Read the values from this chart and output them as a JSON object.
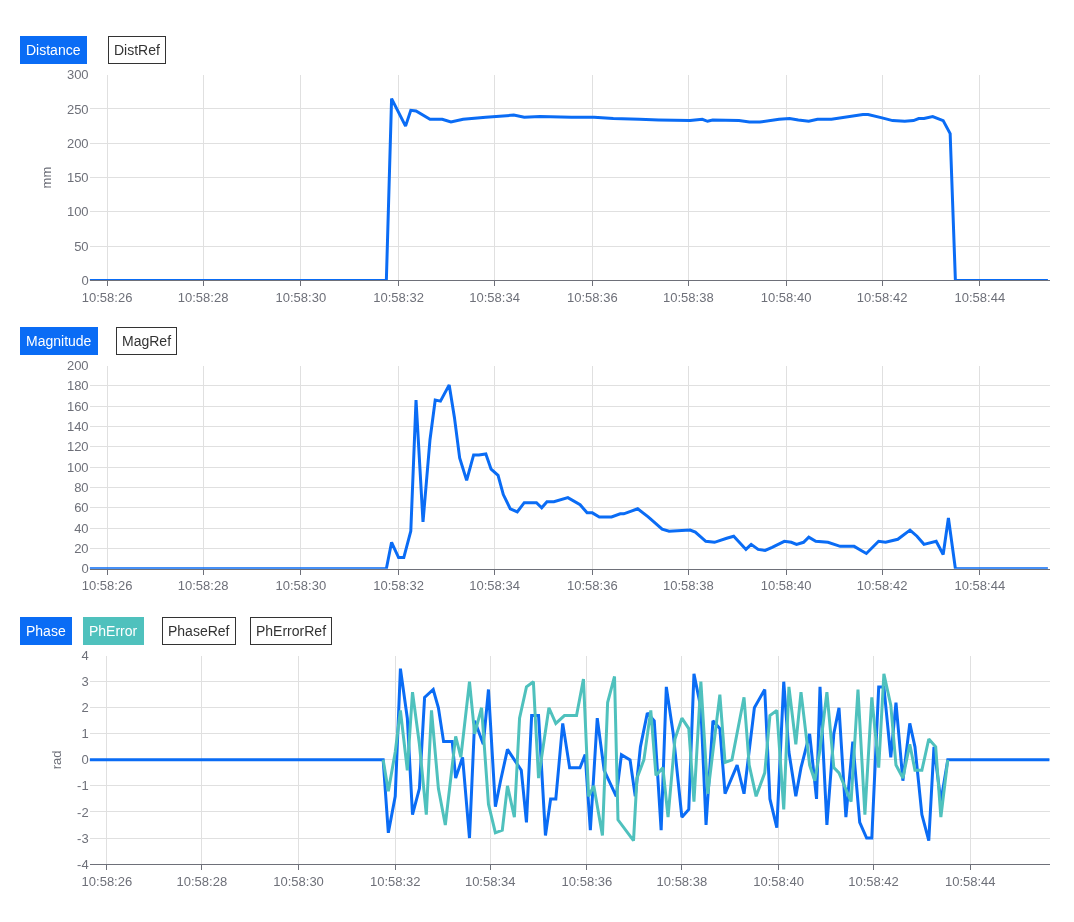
{
  "chart_data": [
    {
      "type": "line",
      "ylabel": "mm",
      "xlim": [
        10.97379,
        10.97929
      ],
      "ylim": [
        0,
        300
      ],
      "yticks": [
        0,
        50,
        100,
        150,
        200,
        250,
        300
      ],
      "xticks": [
        {
          "value": 10.97389,
          "label": "10:58:26"
        },
        {
          "value": 10.97444,
          "label": "10:58:28"
        },
        {
          "value": 10.975,
          "label": "10:58:30"
        },
        {
          "value": 10.97556,
          "label": "10:58:32"
        },
        {
          "value": 10.97611,
          "label": "10:58:34"
        },
        {
          "value": 10.97667,
          "label": "10:58:36"
        },
        {
          "value": 10.97722,
          "label": "10:58:38"
        },
        {
          "value": 10.97778,
          "label": "10:58:40"
        },
        {
          "value": 10.97833,
          "label": "10:58:42"
        },
        {
          "value": 10.97889,
          "label": "10:58:44"
        }
      ],
      "grid": true,
      "legend": "top left",
      "marker": "none",
      "line_style": "solid",
      "series": [
        {
          "name": "Distance",
          "color": "#0a6cf5",
          "x": [
            10.97379,
            10.97549,
            10.97552,
            10.9756,
            10.97563,
            10.97566,
            10.97574,
            10.97581,
            10.97586,
            10.97593,
            10.97606,
            10.97622,
            10.97628,
            10.97637,
            10.97655,
            10.97668,
            10.97679,
            10.97694,
            10.97705,
            10.97723,
            10.9773,
            10.97733,
            10.97736,
            10.97751,
            10.97757,
            10.97763,
            10.97774,
            10.9778,
            10.97785,
            10.97791,
            10.97796,
            10.97804,
            10.97822,
            10.97825,
            10.97833,
            10.97839,
            10.97846,
            10.97851,
            10.97854,
            10.97857,
            10.97862,
            10.97868,
            10.97872,
            10.97875,
            10.97928
          ],
          "values": [
            0,
            0,
            265,
            225,
            248,
            247,
            235,
            235,
            231,
            235,
            238,
            241,
            238,
            239,
            238,
            238,
            236,
            235,
            234,
            233,
            235,
            232,
            234,
            233,
            231,
            231,
            235,
            236,
            234,
            232,
            235,
            235,
            242,
            242,
            237,
            233,
            232,
            233,
            236,
            236,
            239,
            233,
            214,
            0,
            0
          ]
        },
        {
          "name": "DistRef"
        }
      ]
    },
    {
      "type": "line",
      "xlim": [
        10.97379,
        10.97929
      ],
      "ylim": [
        0,
        200
      ],
      "yticks": [
        0,
        20,
        40,
        60,
        80,
        100,
        120,
        140,
        160,
        180,
        200
      ],
      "xticks": [
        {
          "value": 10.97389,
          "label": "10:58:26"
        },
        {
          "value": 10.97444,
          "label": "10:58:28"
        },
        {
          "value": 10.975,
          "label": "10:58:30"
        },
        {
          "value": 10.97556,
          "label": "10:58:32"
        },
        {
          "value": 10.97611,
          "label": "10:58:34"
        },
        {
          "value": 10.97667,
          "label": "10:58:36"
        },
        {
          "value": 10.97722,
          "label": "10:58:38"
        },
        {
          "value": 10.97778,
          "label": "10:58:40"
        },
        {
          "value": 10.97833,
          "label": "10:58:42"
        },
        {
          "value": 10.97889,
          "label": "10:58:44"
        }
      ],
      "grid": true,
      "legend": "top left",
      "marker": "none",
      "line_style": "solid",
      "series": [
        {
          "name": "Magnitude",
          "color": "#0a6cf5",
          "x": [
            10.97379,
            10.97549,
            10.97552,
            10.97556,
            10.97559,
            10.97563,
            10.97566,
            10.9757,
            10.97574,
            10.97577,
            10.9758,
            10.97585,
            10.97588,
            10.97591,
            10.97595,
            10.97599,
            10.97602,
            10.97606,
            10.97609,
            10.97613,
            10.97616,
            10.9762,
            10.97624,
            10.97628,
            10.97635,
            10.97638,
            10.97641,
            10.97645,
            10.97653,
            10.9766,
            10.97664,
            10.97667,
            10.97671,
            10.97678,
            10.97683,
            10.97685,
            10.97693,
            10.97699,
            10.97707,
            10.97711,
            10.97723,
            10.97726,
            10.97732,
            10.97737,
            10.97744,
            10.97748,
            10.97755,
            10.97758,
            10.97762,
            10.97766,
            10.9777,
            10.97777,
            10.97781,
            10.97784,
            10.97788,
            10.97791,
            10.97795,
            10.97802,
            10.97809,
            10.97817,
            10.97821,
            10.97824,
            10.97831,
            10.97835,
            10.97842,
            10.97849,
            10.97853,
            10.97857,
            10.97864,
            10.97868,
            10.97871,
            10.97875,
            10.97928
          ],
          "values": [
            0,
            0,
            26,
            11,
            11,
            37,
            166,
            46,
            127,
            166,
            165,
            181,
            149,
            109,
            87,
            112,
            112,
            113,
            98,
            92,
            73,
            59,
            56,
            65,
            65,
            60,
            66,
            66,
            70,
            63,
            55,
            55,
            51,
            51,
            54,
            54,
            59,
            51,
            39,
            37,
            38,
            36,
            27,
            26,
            30,
            32,
            19,
            24,
            19,
            18,
            21,
            27,
            26,
            24,
            26,
            31,
            27,
            26,
            22,
            22,
            18,
            15,
            27,
            26,
            29,
            38,
            32,
            24,
            27,
            14,
            50,
            0,
            0
          ]
        },
        {
          "name": "MagRef"
        }
      ]
    },
    {
      "type": "line",
      "ylabel": "rad",
      "xlim": [
        10.97379,
        10.97935
      ],
      "ylim": [
        -4,
        4
      ],
      "yticks": [
        -4,
        -3,
        -2,
        -1,
        0,
        1,
        2,
        3,
        4
      ],
      "xticks": [
        {
          "value": 10.97389,
          "label": "10:58:26"
        },
        {
          "value": 10.97444,
          "label": "10:58:28"
        },
        {
          "value": 10.975,
          "label": "10:58:30"
        },
        {
          "value": 10.97556,
          "label": "10:58:32"
        },
        {
          "value": 10.97611,
          "label": "10:58:34"
        },
        {
          "value": 10.97667,
          "label": "10:58:36"
        },
        {
          "value": 10.97722,
          "label": "10:58:38"
        },
        {
          "value": 10.97778,
          "label": "10:58:40"
        },
        {
          "value": 10.97833,
          "label": "10:58:42"
        },
        {
          "value": 10.97889,
          "label": "10:58:44"
        }
      ],
      "grid": true,
      "legend": "top left",
      "marker": "none",
      "line_style": "solid",
      "series": [
        {
          "name": "Phase",
          "color": "#0a6cf5",
          "x": [
            10.97379,
            10.97549,
            10.97552,
            10.97556,
            10.97559,
            10.97563,
            10.97566,
            10.9757,
            10.97573,
            10.97578,
            10.97581,
            10.97584,
            10.97589,
            10.97591,
            10.97595,
            10.97599,
            10.97602,
            10.97607,
            10.9761,
            10.97614,
            10.97617,
            10.97621,
            10.97629,
            10.97632,
            10.97635,
            10.97639,
            10.97643,
            10.97646,
            10.97649,
            10.97653,
            10.97657,
            10.97663,
            10.97666,
            10.97669,
            10.97673,
            10.97677,
            10.97684,
            10.97687,
            10.97692,
            10.97695,
            10.97698,
            10.97702,
            10.97706,
            10.9771,
            10.97713,
            10.97717,
            10.97722,
            10.97726,
            10.97729,
            10.97733,
            10.97736,
            10.9774,
            10.97744,
            10.97747,
            10.97754,
            10.97758,
            10.97764,
            10.9777,
            10.97773,
            10.97777,
            10.97781,
            10.97784,
            10.97788,
            10.97791,
            10.97796,
            10.978,
            10.97802,
            10.97806,
            10.9781,
            10.97813,
            10.97817,
            10.97821,
            10.97825,
            10.97829,
            10.97832,
            10.97836,
            10.97839,
            10.97843,
            10.97846,
            10.9785,
            10.97854,
            10.97857,
            10.97861,
            10.97865,
            10.97868,
            10.97872,
            10.97876,
            10.97935
          ],
          "values": [
            0,
            0,
            -2.8,
            -1.4,
            3.5,
            1.6,
            -2.1,
            -1.1,
            2.4,
            2.7,
            2.0,
            0.7,
            0.7,
            -0.7,
            0.1,
            -3.0,
            1.5,
            0.6,
            2.7,
            -1.8,
            -0.8,
            0.4,
            -0.4,
            -2.4,
            1.7,
            1.7,
            -2.9,
            -1.5,
            -1.5,
            1.4,
            -0.3,
            -0.3,
            0.2,
            -2.7,
            1.6,
            -0.4,
            -1.4,
            0.2,
            0.0,
            -1.4,
            0.5,
            1.8,
            1.5,
            -2.7,
            2.8,
            1.0,
            -2.2,
            -1.9,
            3.3,
            2.0,
            -2.5,
            1.5,
            1.2,
            -1.3,
            -0.2,
            -1.3,
            2.0,
            2.7,
            -1.5,
            -2.6,
            3.0,
            0.3,
            -1.4,
            -0.3,
            1.0,
            -1.5,
            2.8,
            -2.5,
            1.0,
            2.0,
            -2.2,
            0.7,
            -2.4,
            -3.0,
            -3.0,
            2.8,
            2.8,
            0.1,
            2.2,
            -0.8,
            1.4,
            0.5,
            -2.1,
            -3.1,
            0.5,
            -1.6,
            0,
            0
          ]
        },
        {
          "name": "PhError",
          "color": "#4fc1bd",
          "x": [
            10.97549,
            10.97552,
            10.97556,
            10.97559,
            10.97563,
            10.97566,
            10.9757,
            10.97574,
            10.97577,
            10.97581,
            10.97585,
            10.97591,
            10.97594,
            10.97599,
            10.97602,
            10.97606,
            10.9761,
            10.97614,
            10.97618,
            10.97621,
            10.97625,
            10.97628,
            10.97632,
            10.97636,
            10.97639,
            10.97645,
            10.97649,
            10.97654,
            10.97661,
            10.97665,
            10.97668,
            10.97671,
            10.97676,
            10.97679,
            10.97683,
            10.97685,
            10.97694,
            10.97696,
            10.977,
            10.97704,
            10.97707,
            10.97711,
            10.97714,
            10.97718,
            10.97722,
            10.97726,
            10.97729,
            10.97733,
            10.97737,
            10.97744,
            10.97747,
            10.97751,
            10.97758,
            10.97761,
            10.97765,
            10.9777,
            10.97773,
            10.97777,
            10.97781,
            10.97784,
            10.97788,
            10.97791,
            10.97796,
            10.97799,
            10.97802,
            10.97806,
            10.9781,
            10.97813,
            10.9782,
            10.97824,
            10.97828,
            10.97832,
            10.97836,
            10.97839,
            10.97843,
            10.97846,
            10.9785,
            10.97854,
            10.97857,
            10.97861,
            10.97865,
            10.97869,
            10.97872,
            10.97876
          ],
          "values": [
            0,
            -1.2,
            0.3,
            1.9,
            -0.4,
            2.6,
            0.6,
            -2.1,
            1.9,
            -1.1,
            -2.5,
            0.9,
            0.1,
            3.0,
            1.0,
            2.0,
            -1.7,
            -2.8,
            -2.7,
            -1.0,
            -2.2,
            1.6,
            2.8,
            3.0,
            -0.7,
            2.0,
            1.4,
            1.7,
            1.7,
            3.1,
            -1.4,
            -1.0,
            -2.9,
            2.2,
            3.2,
            -2.3,
            -3.1,
            -0.7,
            0.0,
            1.9,
            -0.6,
            -0.3,
            -2.2,
            0.8,
            1.6,
            1.2,
            -1.6,
            3.0,
            -1.3,
            2.5,
            -0.1,
            0.0,
            2.4,
            -0.2,
            -1.4,
            -0.5,
            1.7,
            1.9,
            -1.9,
            2.8,
            0.6,
            2.6,
            -0.2,
            -0.8,
            0.4,
            2.6,
            -0.3,
            -0.5,
            -1.6,
            2.7,
            -2.1,
            2.4,
            -0.3,
            3.3,
            2.1,
            -0.2,
            -0.7,
            0.6,
            -0.4,
            -0.4,
            0.8,
            0.5,
            -2.2,
            0
          ]
        },
        {
          "name": "PhaseRef"
        },
        {
          "name": "PhErrorRef"
        }
      ]
    }
  ]
}
